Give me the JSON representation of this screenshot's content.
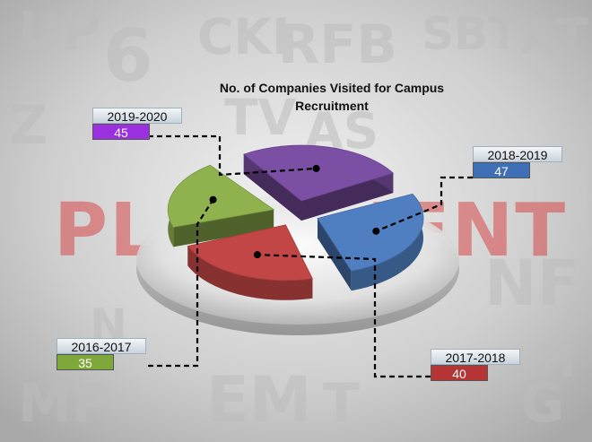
{
  "chart_data": {
    "type": "pie",
    "title": "No. of Companies Visited for Campus Recruitment",
    "categories": [
      "2019-2020",
      "2018-2019",
      "2017-2018",
      "2016-2017"
    ],
    "values": [
      45,
      47,
      40,
      35
    ],
    "colors": [
      "#7b4fa3",
      "#4f7fc0",
      "#c24646",
      "#8fb24f"
    ],
    "label_colors": [
      "#9b30e0",
      "#3f6fb5",
      "#b53535",
      "#7fa83a"
    ],
    "legend_placement": "around (leader lines)"
  }
}
